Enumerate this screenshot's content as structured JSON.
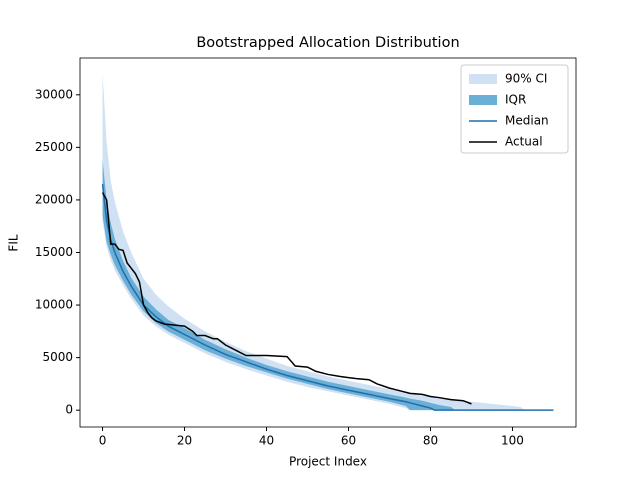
{
  "chart_data": {
    "type": "band-line",
    "title": "Bootstrapped Allocation Distribution",
    "x_label": "Project Index",
    "y_label": "FIL",
    "x": [
      0,
      1,
      2,
      3,
      5,
      7,
      10,
      13,
      16,
      20,
      25,
      30,
      35,
      40,
      45,
      50,
      55,
      60,
      65,
      70,
      74,
      75,
      78,
      80,
      81,
      82,
      85,
      86,
      90,
      95,
      100,
      102,
      103,
      105,
      110
    ],
    "series": [
      {
        "name": "90% CI",
        "kind": "band",
        "color": "#cfe1f2",
        "lower": [
          18000,
          15500,
          14300,
          13300,
          11900,
          10600,
          9000,
          8000,
          7200,
          6400,
          5400,
          4600,
          3900,
          3300,
          2700,
          2200,
          1800,
          1400,
          1000,
          600,
          200,
          0,
          0,
          0,
          0,
          0,
          0,
          0,
          0,
          0,
          0,
          0,
          0,
          0,
          0
        ],
        "upper": [
          32000,
          25500,
          21800,
          19800,
          17000,
          15000,
          12500,
          11000,
          9900,
          8700,
          7500,
          6500,
          5600,
          4900,
          4200,
          3700,
          3200,
          2800,
          2400,
          2000,
          1700,
          1600,
          1400,
          1300,
          1200,
          1100,
          1000,
          900,
          800,
          600,
          400,
          300,
          0,
          0,
          0
        ]
      },
      {
        "name": "IQR",
        "kind": "band",
        "color": "#6baed6",
        "lower": [
          18500,
          16000,
          14800,
          13800,
          12300,
          11000,
          9400,
          8300,
          7500,
          6700,
          5700,
          4900,
          4200,
          3600,
          3000,
          2500,
          2000,
          1600,
          1200,
          800,
          400,
          0,
          0,
          0,
          0,
          0,
          0,
          0,
          0,
          0,
          0,
          0,
          0,
          0,
          0
        ],
        "upper": [
          23800,
          20000,
          17800,
          16300,
          14200,
          12600,
          10800,
          9600,
          8600,
          7800,
          6700,
          5800,
          5000,
          4300,
          3700,
          3200,
          2700,
          2300,
          1900,
          1500,
          1200,
          1100,
          900,
          700,
          600,
          500,
          300,
          0,
          0,
          0,
          0,
          0,
          0,
          0,
          0
        ]
      },
      {
        "name": "Median",
        "kind": "line",
        "color": "#1f6fad",
        "values": [
          21500,
          18000,
          16200,
          15000,
          13200,
          11800,
          10000,
          8900,
          8000,
          7200,
          6200,
          5300,
          4600,
          3900,
          3300,
          2800,
          2300,
          1900,
          1500,
          1100,
          800,
          700,
          400,
          200,
          0,
          0,
          0,
          0,
          0,
          0,
          0,
          0,
          0,
          0,
          0
        ]
      },
      {
        "name": "Actual",
        "kind": "line",
        "color": "#000000",
        "x": [
          0,
          1,
          2,
          3,
          4,
          5,
          6,
          7,
          8,
          9,
          10,
          11,
          12,
          13,
          15,
          20,
          22,
          23,
          25,
          27,
          28,
          30,
          33,
          35,
          40,
          45,
          47,
          50,
          52,
          55,
          58,
          60,
          62,
          65,
          67,
          70,
          72,
          75,
          78,
          80,
          82,
          85,
          88,
          90
        ],
        "values": [
          20700,
          20000,
          15800,
          15800,
          15300,
          15200,
          14000,
          13500,
          13000,
          12200,
          10000,
          9300,
          8800,
          8500,
          8200,
          8000,
          7500,
          7100,
          7100,
          6800,
          6800,
          6200,
          5600,
          5200,
          5200,
          5100,
          4200,
          4100,
          3700,
          3400,
          3200,
          3100,
          3000,
          2900,
          2500,
          2100,
          1900,
          1600,
          1500,
          1300,
          1200,
          1000,
          900,
          600
        ]
      }
    ],
    "xlim": [
      -5.5,
      115.5
    ],
    "ylim": [
      -1600,
      33500
    ],
    "xticks": [
      0,
      20,
      40,
      60,
      80,
      100
    ],
    "yticks": [
      0,
      5000,
      10000,
      15000,
      20000,
      25000,
      30000
    ],
    "legend": "upper right"
  }
}
